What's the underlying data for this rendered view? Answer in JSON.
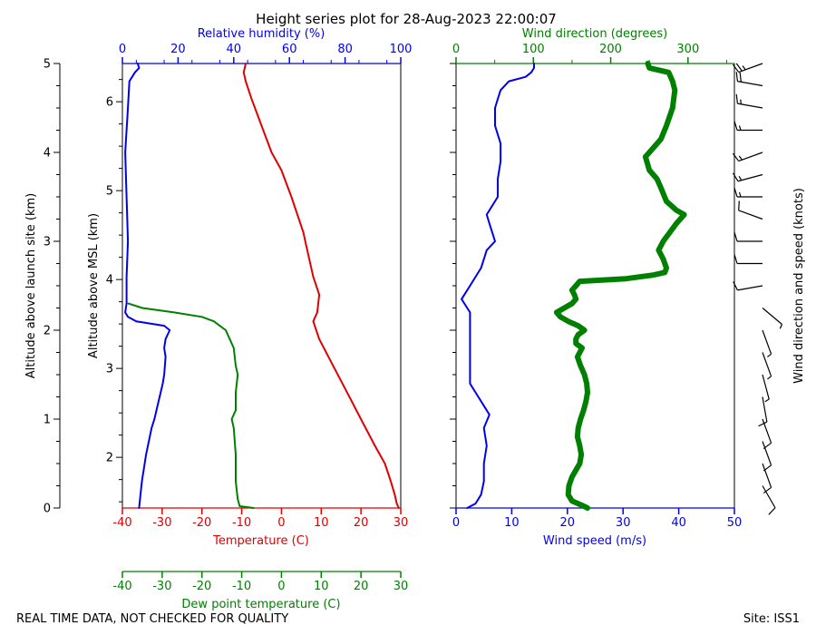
{
  "title": "Height series plot for 28-Aug-2023 22:00:07",
  "footer": {
    "left": "REAL TIME DATA, NOT CHECKED FOR QUALITY",
    "right": "Site: ISS1"
  },
  "colors": {
    "temperature": "#e00000",
    "dewpoint": "#008000",
    "humidity": "#0000ee",
    "wind_speed": "#0000ee",
    "wind_direction": "#008000",
    "barbs": "#000000"
  },
  "axes": {
    "launch_alt": {
      "label": "Altitude above launch site (km)",
      "ticks": [
        0,
        1,
        2,
        3,
        4,
        5
      ],
      "range": [
        0,
        5
      ]
    },
    "msl_alt": {
      "label": "Altitude above MSL (km)",
      "ticks": [
        2,
        3,
        4,
        5,
        6
      ],
      "range": [
        1.43,
        6.43
      ]
    },
    "temperature": {
      "label": "Temperature (C)",
      "ticks": [
        -40,
        -30,
        -20,
        -10,
        0,
        10,
        20,
        30
      ],
      "range": [
        -40,
        30
      ]
    },
    "humidity": {
      "label": "Relative humidity (%)",
      "ticks": [
        0,
        20,
        40,
        60,
        80,
        100
      ],
      "range": [
        0,
        100
      ]
    },
    "dewpoint": {
      "label": "Dew point temperature (C)",
      "ticks": [
        -40,
        -30,
        -20,
        -10,
        0,
        10,
        20,
        30
      ],
      "range": [
        -40,
        30
      ]
    },
    "wind_speed": {
      "label": "Wind speed (m/s)",
      "ticks": [
        0,
        10,
        20,
        30,
        40,
        50
      ],
      "range": [
        0,
        50
      ]
    },
    "wind_direction": {
      "label": "Wind direction (degrees)",
      "ticks": [
        0,
        100,
        200,
        300
      ],
      "range": [
        0,
        360
      ]
    },
    "barbs": {
      "label": "Wind direction and speed (knots)"
    }
  },
  "chart_data": {
    "type": "line",
    "series": [
      {
        "name": "Temperature",
        "axis": "temperature",
        "unit": "C",
        "points": [
          [
            0.0,
            29.5
          ],
          [
            0.05,
            29.0
          ],
          [
            0.15,
            28.5
          ],
          [
            0.3,
            27.5
          ],
          [
            0.5,
            26.0
          ],
          [
            0.7,
            23.5
          ],
          [
            1.0,
            20.0
          ],
          [
            1.3,
            16.5
          ],
          [
            1.6,
            13.0
          ],
          [
            1.9,
            9.5
          ],
          [
            2.1,
            8.0
          ],
          [
            2.2,
            9.0
          ],
          [
            2.4,
            9.5
          ],
          [
            2.6,
            8.0
          ],
          [
            2.8,
            7.0
          ],
          [
            3.0,
            6.0
          ],
          [
            3.1,
            5.5
          ],
          [
            3.3,
            4.0
          ],
          [
            3.5,
            2.5
          ],
          [
            3.8,
            0.0
          ],
          [
            4.0,
            -2.5
          ],
          [
            4.3,
            -5.0
          ],
          [
            4.6,
            -7.5
          ],
          [
            4.8,
            -9.0
          ],
          [
            4.9,
            -9.5
          ],
          [
            5.0,
            -9.0
          ]
        ]
      },
      {
        "name": "Dew point",
        "axis": "dewpoint",
        "unit": "C",
        "points": [
          [
            0.0,
            -7.0
          ],
          [
            0.02,
            -10.5
          ],
          [
            0.1,
            -11.0
          ],
          [
            0.3,
            -11.5
          ],
          [
            0.6,
            -11.5
          ],
          [
            0.9,
            -12.0
          ],
          [
            1.0,
            -12.5
          ],
          [
            1.1,
            -11.5
          ],
          [
            1.3,
            -11.5
          ],
          [
            1.5,
            -11.0
          ],
          [
            1.6,
            -11.5
          ],
          [
            1.8,
            -12.0
          ],
          [
            1.9,
            -13.0
          ],
          [
            2.0,
            -14.0
          ],
          [
            2.05,
            -15.5
          ],
          [
            2.1,
            -17.0
          ],
          [
            2.15,
            -20.0
          ],
          [
            2.2,
            -27.0
          ],
          [
            2.25,
            -35.0
          ],
          [
            2.3,
            -38.5
          ]
        ]
      },
      {
        "name": "Relative humidity",
        "axis": "humidity",
        "unit": "%",
        "points": [
          [
            0.0,
            6.0
          ],
          [
            0.3,
            7.0
          ],
          [
            0.6,
            8.5
          ],
          [
            0.9,
            10.5
          ],
          [
            1.0,
            11.5
          ],
          [
            1.2,
            13.0
          ],
          [
            1.4,
            14.5
          ],
          [
            1.5,
            15.0
          ],
          [
            1.7,
            15.5
          ],
          [
            1.8,
            15.0
          ],
          [
            1.9,
            15.5
          ],
          [
            2.0,
            17.0
          ],
          [
            2.05,
            15.0
          ],
          [
            2.1,
            5.0
          ],
          [
            2.15,
            2.0
          ],
          [
            2.2,
            1.0
          ],
          [
            2.3,
            1.5
          ],
          [
            2.6,
            1.5
          ],
          [
            3.0,
            2.0
          ],
          [
            3.5,
            1.5
          ],
          [
            4.0,
            1.0
          ],
          [
            4.5,
            2.0
          ],
          [
            4.8,
            2.5
          ],
          [
            4.9,
            4.5
          ],
          [
            4.95,
            6.0
          ],
          [
            5.0,
            5.5
          ]
        ]
      },
      {
        "name": "Wind speed",
        "axis": "wind_speed",
        "unit": "m/s",
        "points": [
          [
            0.0,
            2.0
          ],
          [
            0.05,
            3.5
          ],
          [
            0.15,
            4.5
          ],
          [
            0.3,
            5.0
          ],
          [
            0.5,
            5.0
          ],
          [
            0.7,
            5.5
          ],
          [
            0.9,
            5.0
          ],
          [
            1.05,
            6.0
          ],
          [
            1.15,
            5.0
          ],
          [
            1.3,
            3.5
          ],
          [
            1.4,
            2.5
          ],
          [
            1.6,
            2.5
          ],
          [
            1.8,
            2.5
          ],
          [
            2.0,
            2.5
          ],
          [
            2.2,
            2.5
          ],
          [
            2.3,
            1.5
          ],
          [
            2.35,
            1.0
          ],
          [
            2.4,
            1.5
          ],
          [
            2.5,
            2.5
          ],
          [
            2.7,
            4.5
          ],
          [
            2.9,
            5.5
          ],
          [
            3.0,
            7.0
          ],
          [
            3.1,
            6.5
          ],
          [
            3.2,
            6.0
          ],
          [
            3.3,
            5.5
          ],
          [
            3.4,
            6.5
          ],
          [
            3.5,
            7.5
          ],
          [
            3.7,
            7.5
          ],
          [
            3.9,
            8.0
          ],
          [
            4.1,
            8.0
          ],
          [
            4.3,
            7.0
          ],
          [
            4.5,
            7.0
          ],
          [
            4.6,
            7.5
          ],
          [
            4.7,
            8.0
          ],
          [
            4.8,
            9.5
          ],
          [
            4.85,
            12.5
          ],
          [
            4.9,
            13.5
          ],
          [
            4.95,
            14.0
          ],
          [
            5.0,
            14.0
          ]
        ]
      },
      {
        "name": "Wind direction",
        "axis": "wind_direction",
        "unit": "degrees",
        "points": [
          [
            0.0,
            170
          ],
          [
            0.03,
            163
          ],
          [
            0.08,
            150
          ],
          [
            0.15,
            145
          ],
          [
            0.25,
            146
          ],
          [
            0.35,
            150
          ],
          [
            0.5,
            160
          ],
          [
            0.6,
            162
          ],
          [
            0.7,
            160
          ],
          [
            0.8,
            157
          ],
          [
            0.9,
            158
          ],
          [
            1.0,
            161
          ],
          [
            1.1,
            165
          ],
          [
            1.2,
            168
          ],
          [
            1.3,
            170
          ],
          [
            1.4,
            169
          ],
          [
            1.5,
            166
          ],
          [
            1.6,
            161
          ],
          [
            1.7,
            157
          ],
          [
            1.8,
            163
          ],
          [
            1.85,
            155
          ],
          [
            1.9,
            155
          ],
          [
            1.95,
            158
          ],
          [
            2.0,
            166
          ],
          [
            2.05,
            158
          ],
          [
            2.1,
            145
          ],
          [
            2.15,
            135
          ],
          [
            2.2,
            130
          ],
          [
            2.3,
            150
          ],
          [
            2.35,
            155
          ],
          [
            2.4,
            153
          ],
          [
            2.45,
            150
          ],
          [
            2.5,
            155
          ],
          [
            2.55,
            160
          ],
          [
            2.58,
            220
          ],
          [
            2.62,
            255
          ],
          [
            2.65,
            270
          ],
          [
            2.7,
            272
          ],
          [
            2.8,
            268
          ],
          [
            2.9,
            262
          ],
          [
            3.0,
            268
          ],
          [
            3.2,
            285
          ],
          [
            3.3,
            295
          ],
          [
            3.35,
            285
          ],
          [
            3.45,
            272
          ],
          [
            3.6,
            265
          ],
          [
            3.7,
            260
          ],
          [
            3.8,
            250
          ],
          [
            3.95,
            245
          ],
          [
            4.05,
            255
          ],
          [
            4.15,
            265
          ],
          [
            4.3,
            272
          ],
          [
            4.5,
            280
          ],
          [
            4.7,
            283
          ],
          [
            4.8,
            280
          ],
          [
            4.9,
            275
          ],
          [
            4.95,
            250
          ],
          [
            5.0,
            248
          ]
        ]
      }
    ],
    "barbs": [
      {
        "alt": 0.25,
        "dir": 150,
        "knots": 10
      },
      {
        "alt": 0.5,
        "dir": 160,
        "knots": 10
      },
      {
        "alt": 0.75,
        "dir": 160,
        "knots": 10
      },
      {
        "alt": 1.0,
        "dir": 160,
        "knots": 10
      },
      {
        "alt": 1.25,
        "dir": 170,
        "knots": 8
      },
      {
        "alt": 1.5,
        "dir": 165,
        "knots": 5
      },
      {
        "alt": 1.75,
        "dir": 160,
        "knots": 5
      },
      {
        "alt": 2.0,
        "dir": 160,
        "knots": 5
      },
      {
        "alt": 2.25,
        "dir": 130,
        "knots": 3
      },
      {
        "alt": 2.5,
        "dir": 260,
        "knots": 8
      },
      {
        "alt": 2.75,
        "dir": 270,
        "knots": 10
      },
      {
        "alt": 3.0,
        "dir": 270,
        "knots": 12
      },
      {
        "alt": 3.25,
        "dir": 290,
        "knots": 12
      },
      {
        "alt": 3.5,
        "dir": 270,
        "knots": 15
      },
      {
        "alt": 3.75,
        "dir": 255,
        "knots": 15
      },
      {
        "alt": 4.0,
        "dir": 250,
        "knots": 15
      },
      {
        "alt": 4.25,
        "dir": 270,
        "knots": 15
      },
      {
        "alt": 4.5,
        "dir": 280,
        "knots": 15
      },
      {
        "alt": 4.75,
        "dir": 280,
        "knots": 20
      },
      {
        "alt": 5.0,
        "dir": 250,
        "knots": 25
      }
    ]
  }
}
